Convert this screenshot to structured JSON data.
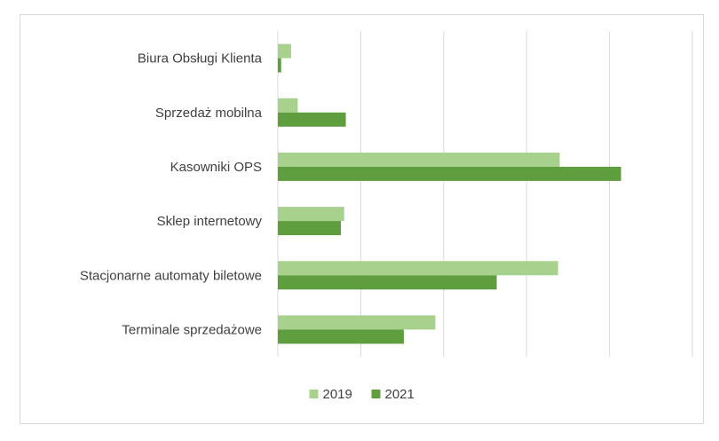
{
  "chart_data": {
    "type": "bar",
    "orientation": "horizontal",
    "categories": [
      "Biura Obsługi Klienta",
      "Sprzedaż mobilna",
      "Kasowniki OPS",
      "Sklep internetowy",
      "Stacjonarne automaty biletowe",
      "Terminale sprzedażowe"
    ],
    "series": [
      {
        "name": "2019",
        "color": "#a9d18e",
        "values": [
          0.8,
          1.2,
          17.0,
          4.0,
          16.9,
          9.5
        ]
      },
      {
        "name": "2021",
        "color": "#5f9e3f",
        "values": [
          0.2,
          4.1,
          20.7,
          3.8,
          13.2,
          7.6
        ]
      }
    ],
    "xlim": [
      0,
      25
    ],
    "x_gridlines": [
      0,
      5,
      10,
      15,
      20,
      25
    ],
    "grid": true,
    "tick_labels_visible": false,
    "legend_position": "bottom",
    "title": "",
    "xlabel": "",
    "ylabel": ""
  }
}
